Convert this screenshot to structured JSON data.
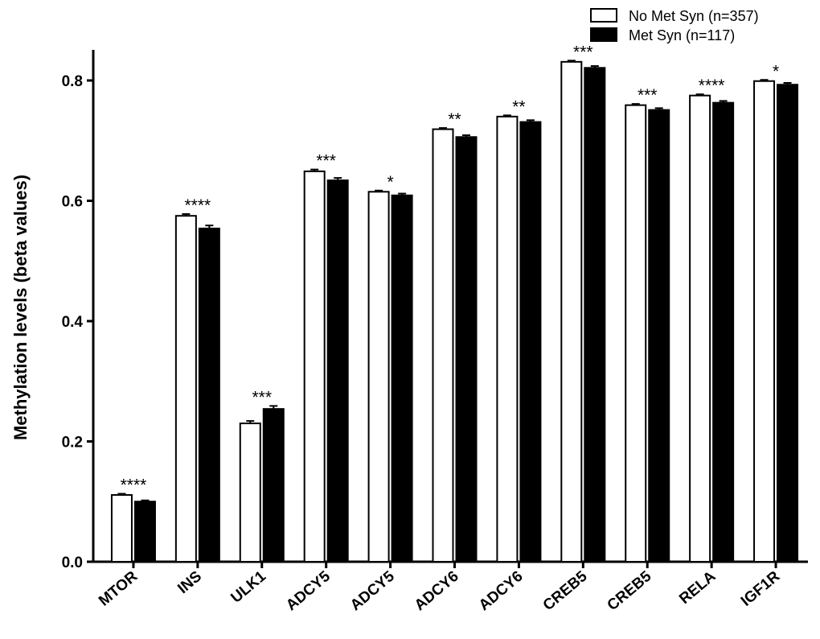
{
  "chart_data": {
    "type": "bar",
    "title": "",
    "xlabel": "",
    "ylabel": "Methylation levels (beta values)",
    "ylim": [
      0,
      0.85
    ],
    "yticks": [
      "0.0",
      "0.2",
      "0.4",
      "0.6",
      "0.8"
    ],
    "ytick_values": [
      0,
      0.2,
      0.4,
      0.6,
      0.8
    ],
    "legend_position": "top-right",
    "categories": [
      "MTOR",
      "INS",
      "ULK1",
      "ADCY5",
      "ADCY5",
      "ADCY6",
      "ADCY6",
      "CREB5",
      "CREB5",
      "RELA",
      "IGF1R"
    ],
    "series": [
      {
        "name": "No Met Syn (n=357)",
        "fill": "#ffffff",
        "values": [
          0.111,
          0.575,
          0.23,
          0.649,
          0.615,
          0.719,
          0.74,
          0.831,
          0.759,
          0.775,
          0.799
        ],
        "errors": [
          0.002,
          0.003,
          0.004,
          0.003,
          0.002,
          0.002,
          0.002,
          0.002,
          0.002,
          0.002,
          0.002
        ]
      },
      {
        "name": "Met Syn (n=117)",
        "fill": "#000000",
        "values": [
          0.1,
          0.554,
          0.254,
          0.634,
          0.609,
          0.706,
          0.731,
          0.821,
          0.751,
          0.763,
          0.793
        ],
        "errors": [
          0.002,
          0.005,
          0.005,
          0.004,
          0.003,
          0.003,
          0.003,
          0.003,
          0.003,
          0.003,
          0.003
        ]
      }
    ],
    "significance": [
      "****",
      "****",
      "***",
      "***",
      "*",
      "**",
      "**",
      "***",
      "***",
      "****",
      "*"
    ]
  }
}
